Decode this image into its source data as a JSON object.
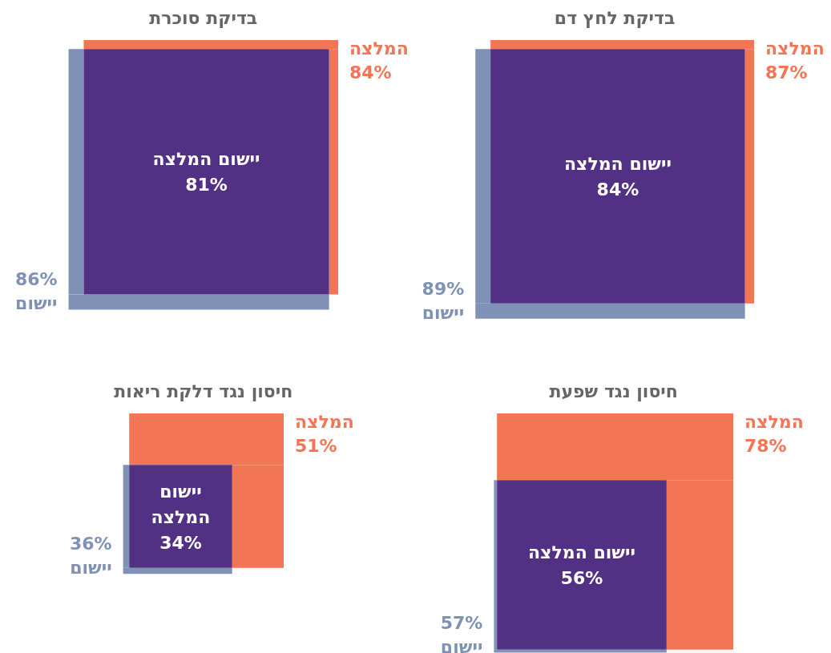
{
  "chart_data": [
    {
      "type": "other",
      "title": "בדיקת לחץ דם",
      "categories": [
        "המלצה",
        "יישום",
        "יישום המלצה"
      ],
      "values": [
        87,
        89,
        84
      ],
      "value_labels": [
        "87%",
        "89%",
        "84%"
      ],
      "colors": [
        "#f27655",
        "#7f91b5",
        "#523185"
      ]
    },
    {
      "type": "other",
      "title": "בדיקת סוכרת",
      "categories": [
        "המלצה",
        "יישום",
        "יישום המלצה"
      ],
      "values": [
        84,
        86,
        81
      ],
      "value_labels": [
        "84%",
        "86%",
        "81%"
      ],
      "colors": [
        "#f27655",
        "#7f91b5",
        "#523185"
      ]
    },
    {
      "type": "other",
      "title": "חיסון נגד שפעת",
      "categories": [
        "המלצה",
        "יישום",
        "יישום המלצה"
      ],
      "values": [
        78,
        57,
        56
      ],
      "value_labels": [
        "78%",
        "57%",
        "56%"
      ],
      "colors": [
        "#f27655",
        "#7f91b5",
        "#523185"
      ]
    },
    {
      "type": "other",
      "title": "חיסון נגד דלקת ריאות",
      "categories": [
        "המלצה",
        "יישום",
        "יישום המלצה"
      ],
      "values": [
        51,
        36,
        34
      ],
      "value_labels": [
        "51%",
        "36%",
        "34%"
      ],
      "colors": [
        "#f27655",
        "#7f91b5",
        "#523185"
      ]
    }
  ]
}
